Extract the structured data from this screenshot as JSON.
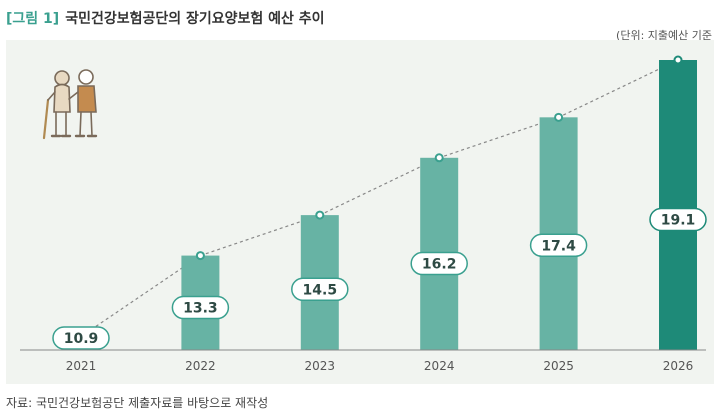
{
  "header": {
    "figure_label": "[그림 1]",
    "title": "국민건강보험공단의 장기요양보험 예산 추이"
  },
  "unit_note": "(단위: 지출예산 기준",
  "source": "자료: 국민건강보험공단 제출자료를 바탕으로 재작성",
  "colors": {
    "bar": "#67b3a4",
    "bar_highlight": "#1e8a78",
    "accent": "#3aa08f",
    "panel_bg": "#f1f4f0"
  },
  "chart_data": {
    "type": "bar",
    "categories": [
      "2021",
      "2022",
      "2023",
      "2024",
      "2025",
      "2026"
    ],
    "values": [
      10.9,
      13.3,
      14.5,
      16.2,
      17.4,
      19.1
    ],
    "value_labels": [
      "10.9",
      "13.3",
      "14.5",
      "16.2",
      "17.4",
      "19.1"
    ],
    "highlight_index": 5,
    "trend_line": "dashed",
    "ylim": [
      10.5,
      19.1
    ],
    "grid": false,
    "icon": "elderly-caregiver-icon"
  }
}
